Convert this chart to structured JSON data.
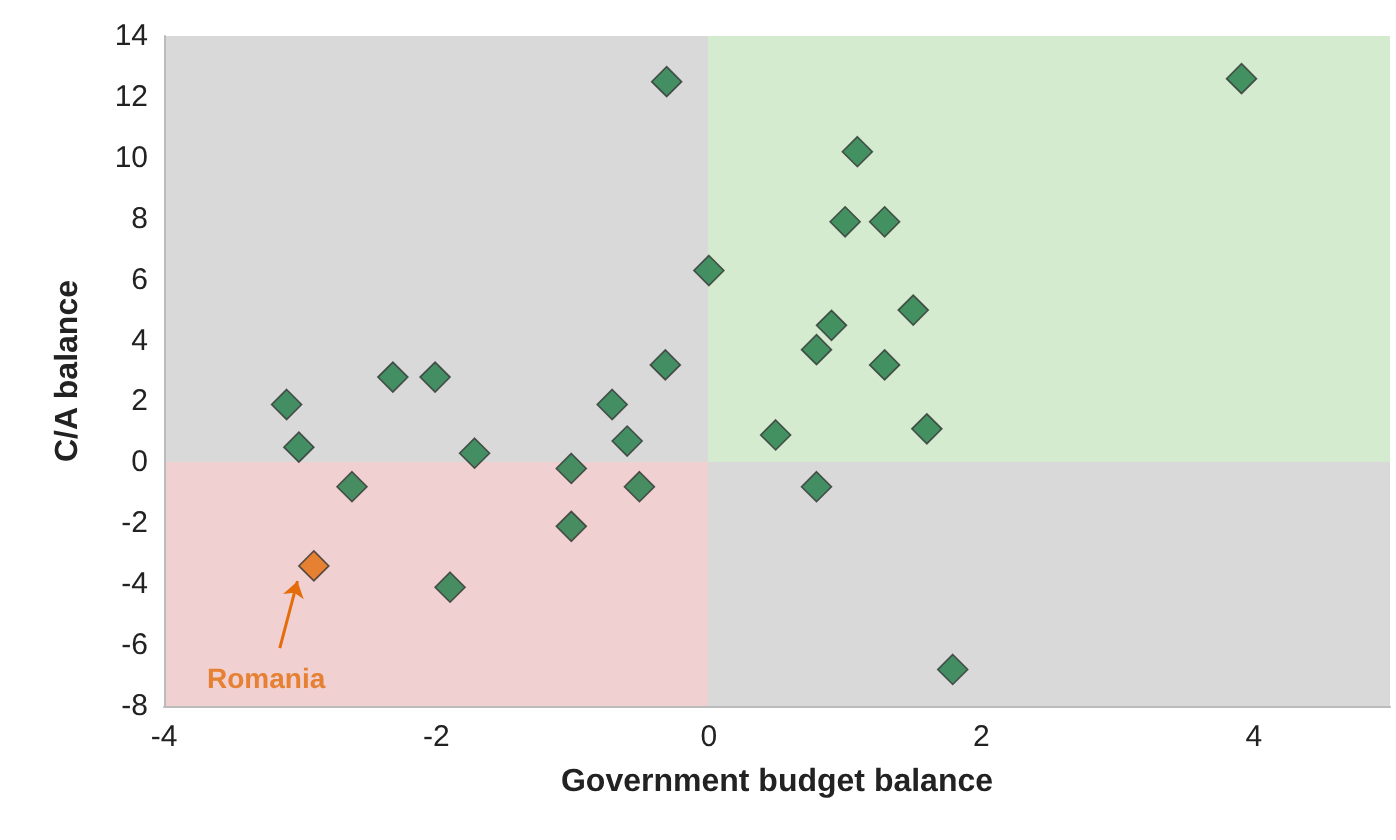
{
  "chart_data": {
    "type": "scatter",
    "xlabel": "Government budget balance",
    "ylabel": "C/A balance",
    "xlim": [
      -4,
      5
    ],
    "xticks": [
      -4,
      -2,
      0,
      2,
      4
    ],
    "ylim": [
      -8,
      14
    ],
    "yticks": [
      -8,
      -6,
      -4,
      -2,
      0,
      2,
      4,
      6,
      8,
      10,
      12,
      14
    ],
    "grid": false,
    "marker": "diamond",
    "series": [
      {
        "color": "#1e7b45",
        "x": [
          -3.1,
          -3.01,
          -2.62,
          -2.32,
          -2.01,
          -1.72,
          -1.9,
          -1.01,
          -1.01,
          -0.71,
          -0.6,
          -0.51,
          -0.32,
          -0.31,
          0,
          0.49,
          0.79,
          0.79,
          0.9,
          1.0,
          1.09,
          1.29,
          1.29,
          1.5,
          1.6,
          1.79,
          3.91
        ],
        "values": [
          1.9,
          0.5,
          -0.8,
          2.8,
          2.8,
          0.3,
          -4.1,
          -0.2,
          -2.1,
          1.9,
          0.7,
          -0.8,
          3.2,
          12.5,
          6.3,
          0.9,
          3.7,
          -0.8,
          4.5,
          7.9,
          10.2,
          7.9,
          3.2,
          5.0,
          1.1,
          -6.8,
          12.6
        ]
      },
      {
        "color": "#e46c0a",
        "x": [
          -2.9
        ],
        "values": [
          -3.4
        ]
      }
    ],
    "annotations": [
      "Romania"
    ]
  }
}
